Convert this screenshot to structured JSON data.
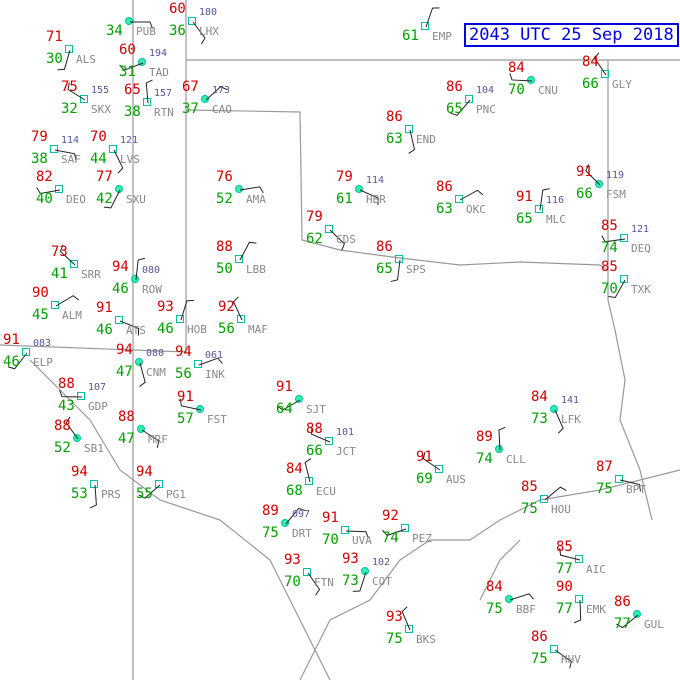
{
  "title": "2043 UTC 25 Sep 2018",
  "colors": {
    "temperature": "#d00000",
    "dewpoint": "#00a000",
    "station_id": "#888888",
    "pressure": "#55559a",
    "border": "#999999",
    "title": "#0000e0"
  },
  "stations": [
    {
      "id": "PUB",
      "temp": "",
      "dew": "34",
      "pres": ""
    },
    {
      "id": "LHX",
      "temp": "60",
      "dew": "36",
      "pres": "180"
    },
    {
      "id": "ALS",
      "temp": "71",
      "dew": "30",
      "pres": ""
    },
    {
      "id": "TAD",
      "temp": "60",
      "dew": "31",
      "pres": "194"
    },
    {
      "id": "SKX",
      "temp": "75",
      "dew": "32",
      "pres": "155"
    },
    {
      "id": "RTN",
      "temp": "65",
      "dew": "38",
      "pres": "157"
    },
    {
      "id": "CAO",
      "temp": "67",
      "dew": "37",
      "pres": "173"
    },
    {
      "id": "SAF",
      "temp": "79",
      "dew": "38",
      "pres": "114"
    },
    {
      "id": "LVS",
      "temp": "70",
      "dew": "44",
      "pres": "121"
    },
    {
      "id": "SXU",
      "temp": "77",
      "dew": "42",
      "pres": ""
    },
    {
      "id": "DEO",
      "temp": "82",
      "dew": "40",
      "pres": ""
    },
    {
      "id": "SRR",
      "temp": "73",
      "dew": "41",
      "pres": ""
    },
    {
      "id": "ROW",
      "temp": "94",
      "dew": "46",
      "pres": "080"
    },
    {
      "id": "ALM",
      "temp": "90",
      "dew": "45",
      "pres": ""
    },
    {
      "id": "ATS",
      "temp": "91",
      "dew": "46",
      "pres": ""
    },
    {
      "id": "CNM",
      "temp": "94",
      "dew": "47",
      "pres": "080"
    },
    {
      "id": "ELP",
      "temp": "91",
      "dew": "46",
      "pres": "083"
    },
    {
      "id": "GDP",
      "temp": "88",
      "dew": "43",
      "pres": "107"
    },
    {
      "id": "SB1",
      "temp": "88",
      "dew": "52",
      "pres": ""
    },
    {
      "id": "HOB",
      "temp": "93",
      "dew": "46",
      "pres": ""
    },
    {
      "id": "INK",
      "temp": "94",
      "dew": "56",
      "pres": "061"
    },
    {
      "id": "MRF",
      "temp": "88",
      "dew": "47",
      "pres": ""
    },
    {
      "id": "PRS",
      "temp": "94",
      "dew": "53",
      "pres": ""
    },
    {
      "id": "PG1",
      "temp": "94",
      "dew": "55",
      "pres": ""
    },
    {
      "id": "FST",
      "temp": "91",
      "dew": "57",
      "pres": ""
    },
    {
      "id": "MAF",
      "temp": "92",
      "dew": "56",
      "pres": ""
    },
    {
      "id": "LBB",
      "temp": "88",
      "dew": "50",
      "pres": ""
    },
    {
      "id": "AMA",
      "temp": "76",
      "dew": "52",
      "pres": ""
    },
    {
      "id": "CDS",
      "temp": "79",
      "dew": "62",
      "pres": ""
    },
    {
      "id": "SPS",
      "temp": "86",
      "dew": "65",
      "pres": ""
    },
    {
      "id": "SJT",
      "temp": "91",
      "dew": "64",
      "pres": ""
    },
    {
      "id": "JCT",
      "temp": "88",
      "dew": "66",
      "pres": "101"
    },
    {
      "id": "ECU",
      "temp": "84",
      "dew": "68",
      "pres": ""
    },
    {
      "id": "DRT",
      "temp": "89",
      "dew": "75",
      "pres": "097"
    },
    {
      "id": "UVA",
      "temp": "91",
      "dew": "70",
      "pres": ""
    },
    {
      "id": "FTN",
      "temp": "93",
      "dew": "70",
      "pres": ""
    },
    {
      "id": "COT",
      "temp": "93",
      "dew": "73",
      "pres": "102"
    },
    {
      "id": "PEZ",
      "temp": "92",
      "dew": "74",
      "pres": ""
    },
    {
      "id": "AUS",
      "temp": "91",
      "dew": "69",
      "pres": ""
    },
    {
      "id": "CLL",
      "temp": "89",
      "dew": "74",
      "pres": ""
    },
    {
      "id": "HOU",
      "temp": "85",
      "dew": "75",
      "pres": ""
    },
    {
      "id": "BPT",
      "temp": "87",
      "dew": "75",
      "pres": ""
    },
    {
      "id": "LFK",
      "temp": "84",
      "dew": "73",
      "pres": "141"
    },
    {
      "id": "TXK",
      "temp": "85",
      "dew": "70",
      "pres": ""
    },
    {
      "id": "DEQ",
      "temp": "85",
      "dew": "74",
      "pres": "121"
    },
    {
      "id": "FSM",
      "temp": "91",
      "dew": "66",
      "pres": "119"
    },
    {
      "id": "MLC",
      "temp": "91",
      "dew": "65",
      "pres": "116"
    },
    {
      "id": "OKC",
      "temp": "86",
      "dew": "63",
      "pres": ""
    },
    {
      "id": "HBR",
      "temp": "79",
      "dew": "61",
      "pres": "114"
    },
    {
      "id": "END",
      "temp": "86",
      "dew": "63",
      "pres": ""
    },
    {
      "id": "PNC",
      "temp": "86",
      "dew": "65",
      "pres": "104"
    },
    {
      "id": "CNU",
      "temp": "84",
      "dew": "70",
      "pres": ""
    },
    {
      "id": "GLY",
      "temp": "84",
      "dew": "66",
      "pres": ""
    },
    {
      "id": "EMP",
      "temp": "",
      "dew": "61",
      "pres": ""
    },
    {
      "id": "BBF",
      "temp": "84",
      "dew": "75",
      "pres": ""
    },
    {
      "id": "HHV",
      "temp": "86",
      "dew": "75",
      "pres": ""
    },
    {
      "id": "EMK",
      "temp": "90",
      "dew": "77",
      "pres": ""
    },
    {
      "id": "GUL",
      "temp": "86",
      "dew": "77",
      "pres": ""
    },
    {
      "id": "AIC",
      "temp": "85",
      "dew": "77",
      "pres": ""
    },
    {
      "id": "BKS",
      "temp": "93",
      "dew": "75",
      "pres": ""
    }
  ]
}
